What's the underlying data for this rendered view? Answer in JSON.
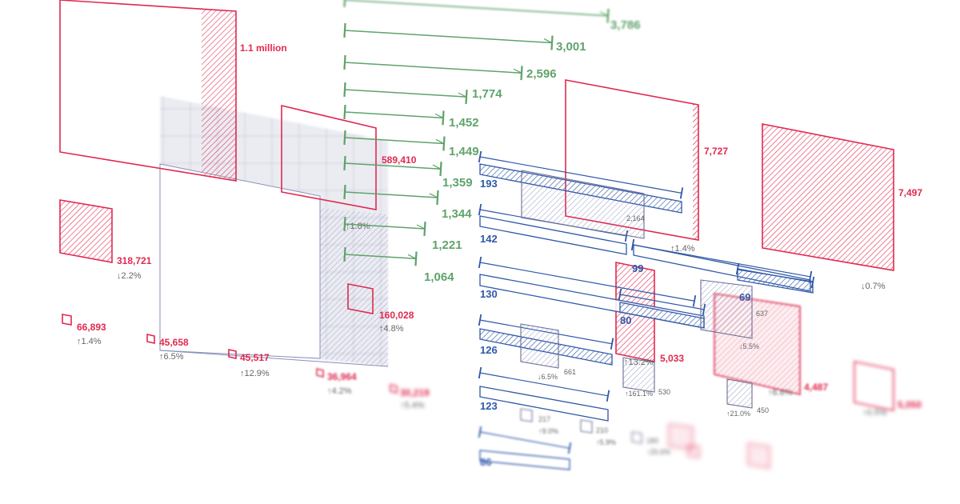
{
  "colors": {
    "red": "#e0294f",
    "green": "#5fa36b",
    "blue": "#2f58a8",
    "grid": "#7f86b4",
    "gray": "#666666"
  },
  "chart_data": [
    {
      "type": "bar",
      "description_label": "red squares",
      "values": [
        {
          "label": "1.1 million",
          "change": ""
        },
        {
          "label": "318,721",
          "change": "2.2%",
          "direction": "down"
        },
        {
          "label": "589,410",
          "change": "1.8%",
          "direction": "up"
        },
        {
          "label": "160,028",
          "change": "4.8%",
          "direction": "up"
        },
        {
          "label": "66,893",
          "change": "1.4%",
          "direction": "up"
        },
        {
          "label": "45,658",
          "change": "6.5%",
          "direction": "up"
        },
        {
          "label": "45,517",
          "change": "12.9%",
          "direction": "up"
        },
        {
          "label": "36,964",
          "change": "4.2%",
          "direction": "up"
        },
        {
          "label": "30,219",
          "change": "5.4%",
          "direction": "up"
        },
        {
          "label": "7,727",
          "change": "1.4%",
          "direction": "up"
        },
        {
          "label": "7,497",
          "change": "0.7%",
          "direction": "down"
        },
        {
          "label": "5,033",
          "change": "13.2%",
          "direction": "up"
        },
        {
          "label": "4,487",
          "change": "6.6%",
          "direction": "up"
        },
        {
          "label": "5,050",
          "change": "0.5%",
          "direction": "up"
        }
      ]
    },
    {
      "type": "bar",
      "values": [
        3786,
        3001,
        2596,
        1774,
        1452,
        1449,
        1359,
        1344,
        1221,
        1064
      ],
      "labels": [
        "3,786",
        "3,001",
        "2,596",
        "1,774",
        "1,452",
        "1,449",
        "1,359",
        "1,344",
        "1,221",
        "1,064"
      ]
    },
    {
      "type": "bar",
      "values": [
        193,
        142,
        130,
        126,
        123,
        99,
        80,
        69,
        86
      ],
      "labels": [
        "193",
        "142",
        "130",
        "126",
        "123",
        "99",
        "80",
        "69",
        "86"
      ]
    },
    {
      "type": "bar",
      "values": [
        {
          "label": "2,164",
          "change": ""
        },
        {
          "label": "661",
          "change": "6.5%",
          "direction": "down"
        },
        {
          "label": "530",
          "change": "161.1%",
          "direction": "up"
        },
        {
          "label": "450",
          "change": "21.0%",
          "direction": "up"
        },
        {
          "label": "637",
          "change": "5.5%",
          "direction": "down"
        },
        {
          "label": "217",
          "change": "9.0%",
          "direction": "up"
        },
        {
          "label": "210",
          "change": "5.9%",
          "direction": "up"
        },
        {
          "label": "180",
          "change": "25.6%",
          "direction": "up"
        }
      ]
    }
  ]
}
